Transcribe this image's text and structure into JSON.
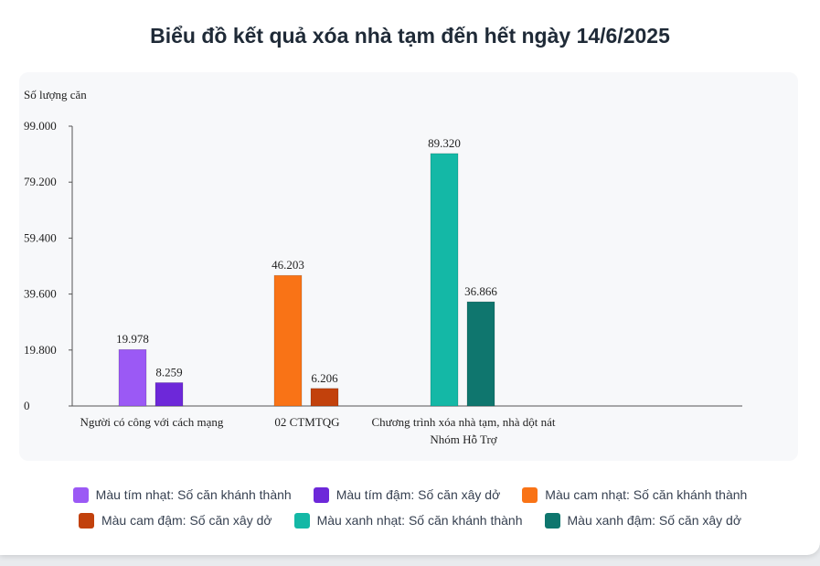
{
  "title": "Biểu đồ kết quả xóa nhà tạm đến hết ngày 14/6/2025",
  "chart_data": {
    "type": "bar",
    "title": "Biểu đồ kết quả xóa nhà tạm đến hết ngày 14/6/2025",
    "ylabel": "Số lượng căn",
    "xlabel": "",
    "ylim": [
      0,
      99000
    ],
    "y_ticks": [
      "0",
      "19.800",
      "39.600",
      "59.400",
      "79.200",
      "99.000"
    ],
    "grid": false,
    "legend_position": "bottom",
    "groups": [
      {
        "label_lines": [
          "Người có công với cách mạng"
        ],
        "bars": [
          {
            "value": 19978,
            "label": "19.978",
            "color": "#9b59f5"
          },
          {
            "value": 8259,
            "label": "8.259",
            "color": "#6d28d9"
          }
        ]
      },
      {
        "label_lines": [
          "02 CTMTQG"
        ],
        "bars": [
          {
            "value": 46203,
            "label": "46.203",
            "color": "#f97316"
          },
          {
            "value": 6206,
            "label": "6.206",
            "color": "#c2410c"
          }
        ]
      },
      {
        "label_lines": [
          "Chương trình xóa nhà tạm, nhà dột nát",
          "Nhóm Hỗ Trợ"
        ],
        "bars": [
          {
            "value": 89320,
            "label": "89.320",
            "color": "#14b8a6"
          },
          {
            "value": 36866,
            "label": "36.866",
            "color": "#0f766e"
          }
        ]
      }
    ]
  },
  "legend": {
    "rows": [
      [
        {
          "label": "Màu tím nhạt: Số căn khánh thành",
          "color": "#9b59f5"
        },
        {
          "label": "Màu tím đậm: Số căn xây dở",
          "color": "#6d28d9"
        },
        {
          "label": "Màu cam nhạt: Số căn khánh thành",
          "color": "#f97316"
        }
      ],
      [
        {
          "label": "Màu cam đậm: Số căn xây dở",
          "color": "#c2410c"
        },
        {
          "label": "Màu xanh nhạt: Số căn khánh thành",
          "color": "#14b8a6"
        },
        {
          "label": "Màu xanh đậm: Số căn xây dở",
          "color": "#0f766e"
        }
      ]
    ]
  }
}
